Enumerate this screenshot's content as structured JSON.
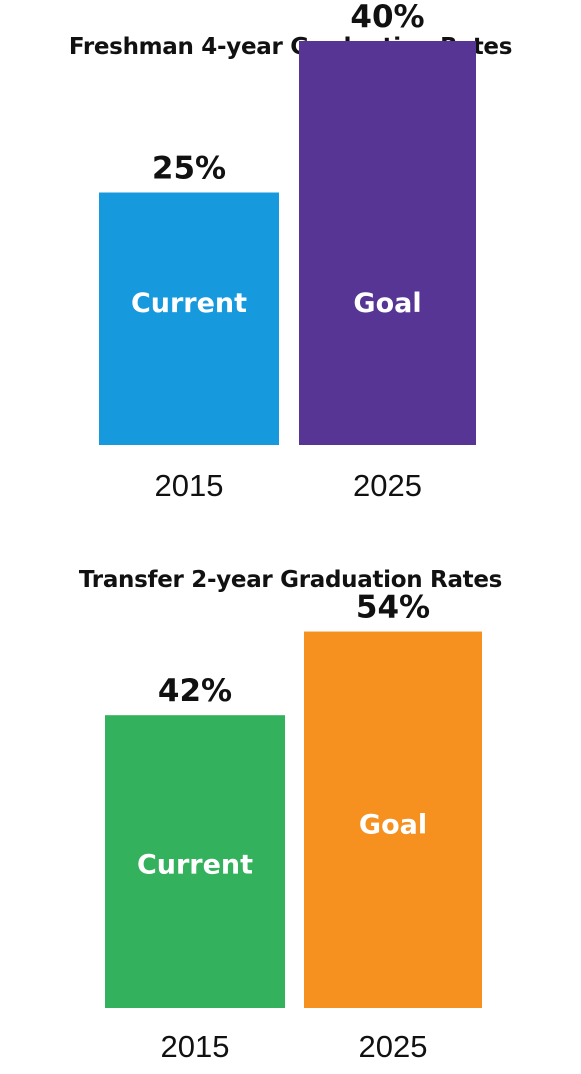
{
  "chart_data": [
    {
      "type": "bar",
      "title": "Freshman 4-year Graduation Rates",
      "categories": [
        "2015",
        "2025"
      ],
      "bar_labels": [
        "Current",
        "Goal"
      ],
      "values": [
        25,
        40
      ],
      "value_labels": [
        "25%",
        "40%"
      ],
      "colors": [
        "#1699dd",
        "#573594"
      ],
      "ylim": [
        0,
        50
      ],
      "grid": false,
      "legend": "none"
    },
    {
      "type": "bar",
      "title": "Transfer 2-year Graduation Rates",
      "categories": [
        "2015",
        "2025"
      ],
      "bar_labels": [
        "Current",
        "Goal"
      ],
      "values": [
        42,
        54
      ],
      "value_labels": [
        "42%",
        "54%"
      ],
      "colors": [
        "#34b15c",
        "#f6901e"
      ],
      "ylim": [
        0,
        70
      ],
      "grid": false,
      "legend": "none"
    }
  ]
}
